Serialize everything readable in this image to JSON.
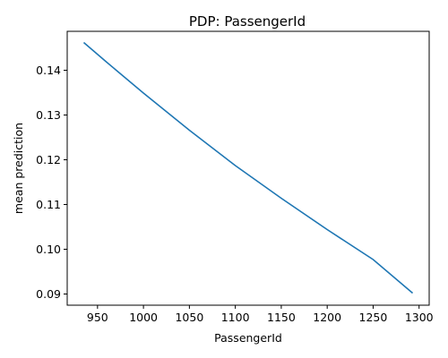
{
  "chart_data": {
    "type": "line",
    "title": "PDP: PassengerId",
    "xlabel": "PassengerId",
    "ylabel": "mean prediction",
    "xlim": [
      917,
      1311
    ],
    "ylim": [
      0.0875,
      0.1487
    ],
    "xticks": [
      950,
      1000,
      1050,
      1100,
      1150,
      1200,
      1250,
      1300
    ],
    "yticks": [
      0.09,
      0.1,
      0.11,
      0.12,
      0.13,
      0.14
    ],
    "grid": false,
    "color": "#1f77b4",
    "series": [
      {
        "x": [
          935,
          960,
          1000,
          1050,
          1100,
          1150,
          1200,
          1250,
          1293
        ],
        "y": [
          0.1462,
          0.1418,
          0.1349,
          0.1266,
          0.1187,
          0.1114,
          0.1044,
          0.0977,
          0.0902
        ]
      }
    ]
  }
}
